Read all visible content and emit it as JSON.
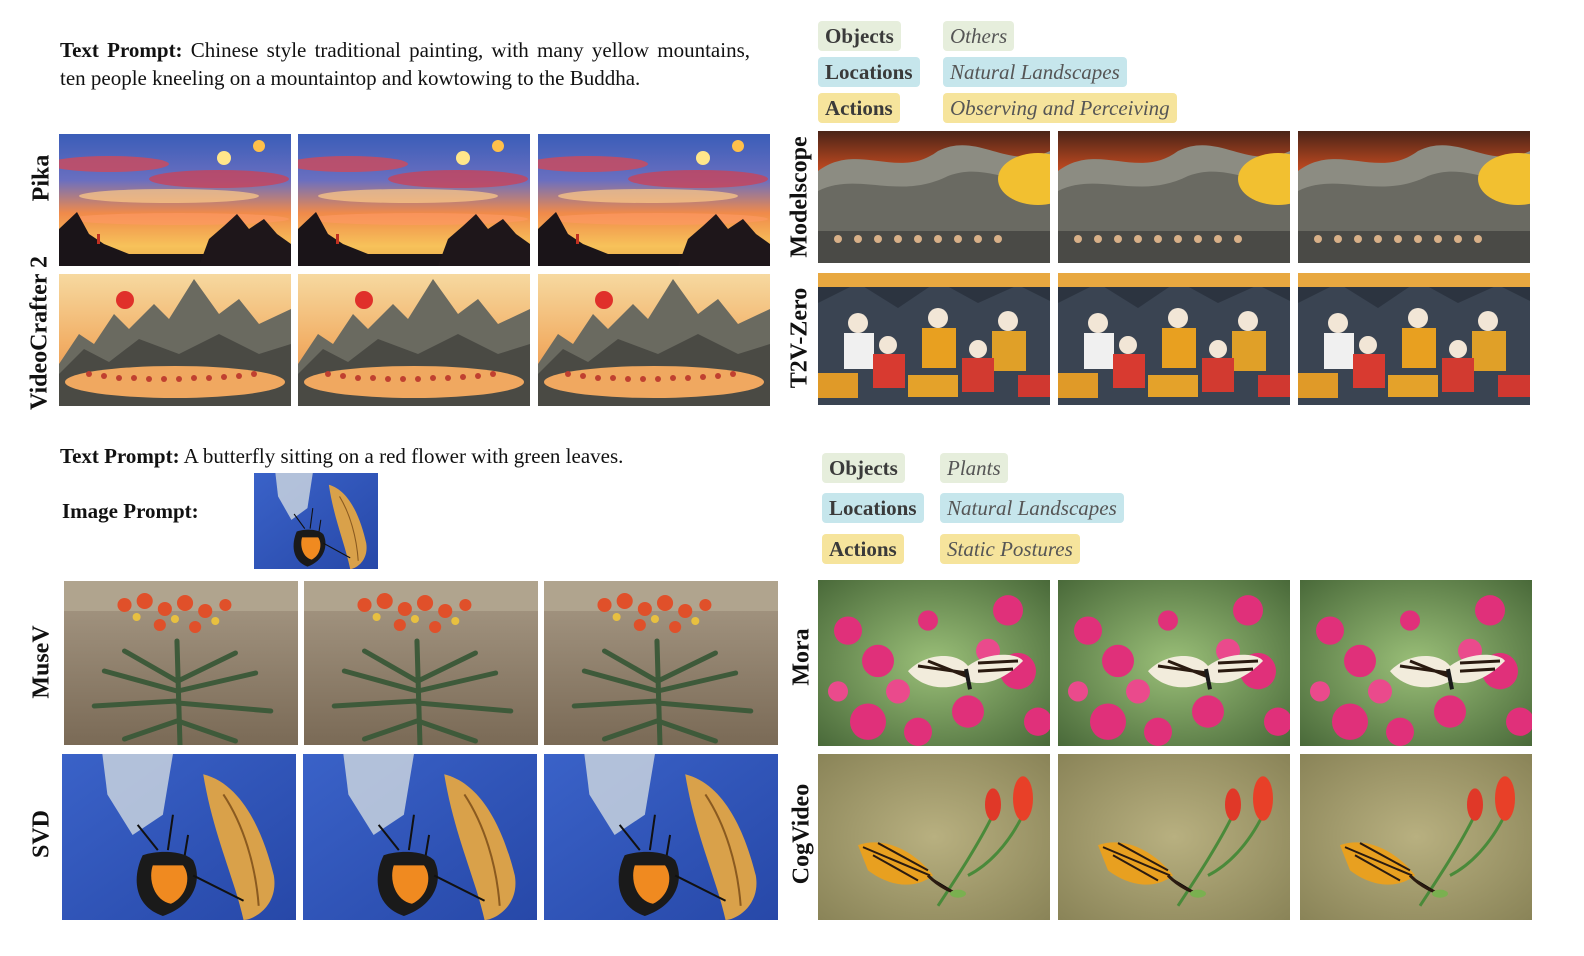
{
  "panels": {
    "top_left": {
      "text_prompt_label": "Text Prompt:",
      "text_prompt": "Chinese style traditional painting, with many yellow mountains, ten people kneeling on a mountaintop and kowtowing to the Buddha.",
      "rows": [
        {
          "model": "Pika"
        },
        {
          "model": "VideoCrafter 2"
        }
      ]
    },
    "top_right": {
      "tags": [
        {
          "category": "Objects",
          "value": "Others",
          "color": "#e6eedc"
        },
        {
          "category": "Locations",
          "value": "Natural Landscapes",
          "color": "#c6e6ec"
        },
        {
          "category": "Actions",
          "value": "Observing and Perceiving",
          "color": "#f6e49c"
        }
      ],
      "rows": [
        {
          "model": "Modelscope"
        },
        {
          "model": "T2V-Zero"
        }
      ]
    },
    "bottom_left": {
      "text_prompt_label": "Text Prompt:",
      "text_prompt": "A butterfly sitting on a red flower with green leaves.",
      "image_prompt_label": "Image Prompt:",
      "rows": [
        {
          "model": "MuseV"
        },
        {
          "model": "SVD"
        }
      ]
    },
    "bottom_right": {
      "tags": [
        {
          "category": "Objects",
          "value": "Plants",
          "color": "#e6eedc"
        },
        {
          "category": "Locations",
          "value": "Natural Landscapes",
          "color": "#c6e6ec"
        },
        {
          "category": "Actions",
          "value": "Static Postures",
          "color": "#f6e49c"
        }
      ],
      "rows": [
        {
          "model": "Mora"
        },
        {
          "model": "CogVideo"
        }
      ]
    }
  }
}
